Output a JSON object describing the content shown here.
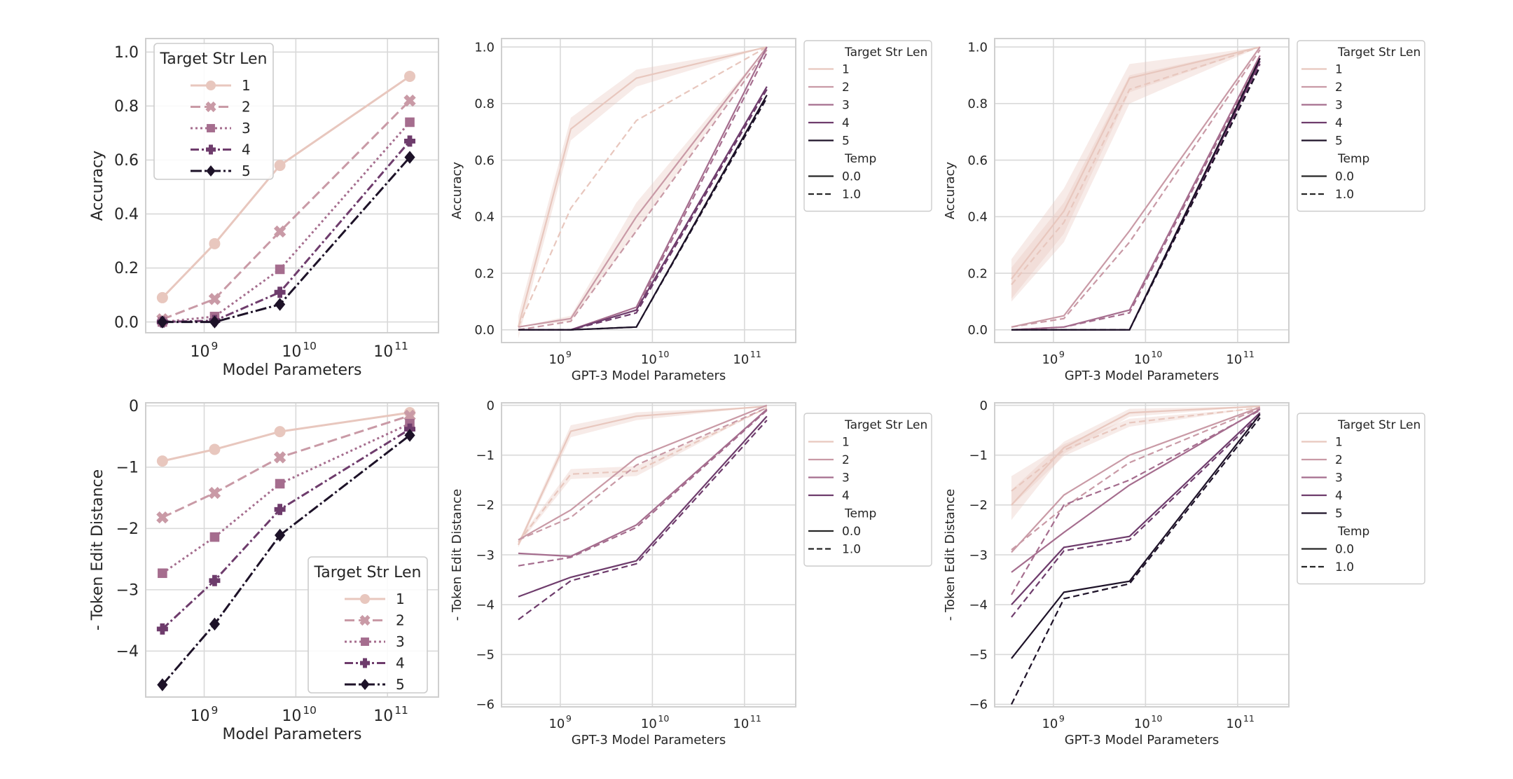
{
  "colors": {
    "len1": "#e8c7be",
    "len2": "#c99aa6",
    "len3": "#a56d8e",
    "len4": "#6e3c6c",
    "len5": "#1d1228",
    "grid": "#d9d9d9",
    "frame": "#cfcfcf",
    "band": "#e8c7be"
  },
  "legends": {
    "target_title": "Target Str Len",
    "temp_title": "Temp",
    "lengths": [
      "1",
      "2",
      "3",
      "4",
      "5"
    ],
    "temps": [
      "0.0",
      "1.0"
    ]
  },
  "chart_data": [
    {
      "type": "line",
      "panel": "top-left",
      "xlabel": "Model Parameters",
      "ylabel": "Accuracy",
      "xscale": "log",
      "xlim": [
        230000000.0,
        360000000000.0
      ],
      "ylim": [
        -0.04,
        1.05
      ],
      "yticks": [
        0.0,
        0.2,
        0.4,
        0.6,
        0.8,
        1.0
      ],
      "ytick_labels": [
        "0.0",
        "0.2",
        "0.4",
        "0.6",
        "0.8",
        "1.0"
      ],
      "xticks": [
        {
          "base": "10",
          "exp": "9",
          "value": 1000000000.0
        },
        {
          "base": "10",
          "exp": "10",
          "value": 10000000000.0
        },
        {
          "base": "10",
          "exp": "11",
          "value": 100000000000.0
        }
      ],
      "legend": "upper-left",
      "legend_title": "Target Str Len",
      "x": [
        350000000.0,
        1300000000.0,
        6700000000.0,
        175000000000.0
      ],
      "series": [
        {
          "name": "1",
          "values": [
            0.09,
            0.29,
            0.58,
            0.91
          ]
        },
        {
          "name": "2",
          "values": [
            0.01,
            0.085,
            0.335,
            0.82
          ]
        },
        {
          "name": "3",
          "values": [
            0.0,
            0.02,
            0.195,
            0.74
          ]
        },
        {
          "name": "4",
          "values": [
            0.0,
            0.005,
            0.11,
            0.67
          ]
        },
        {
          "name": "5",
          "values": [
            0.0,
            0.0,
            0.065,
            0.61
          ]
        }
      ]
    },
    {
      "type": "line",
      "panel": "top-middle",
      "xlabel": "GPT-3 Model Parameters",
      "ylabel": "Accuracy",
      "xscale": "log",
      "xlim": [
        230000000.0,
        360000000000.0
      ],
      "ylim": [
        -0.045,
        1.03
      ],
      "yticks": [
        0.0,
        0.2,
        0.4,
        0.6,
        0.8,
        1.0
      ],
      "ytick_labels": [
        "0.0",
        "0.2",
        "0.4",
        "0.6",
        "0.8",
        "1.0"
      ],
      "xticks": [
        {
          "base": "10",
          "exp": "9",
          "value": 1000000000.0
        },
        {
          "base": "10",
          "exp": "10",
          "value": 10000000000.0
        },
        {
          "base": "10",
          "exp": "11",
          "value": 100000000000.0
        }
      ],
      "legend": "outside-right",
      "legend_title": "Target Str Len",
      "legend_lengths": [
        "1",
        "2",
        "3",
        "4",
        "5"
      ],
      "x": [
        350000000.0,
        1300000000.0,
        6700000000.0,
        175000000000.0
      ],
      "series": [
        {
          "len": "1",
          "temp": "0.0",
          "values": [
            0.01,
            0.71,
            0.89,
            1.0
          ],
          "band": [
            0.04,
            0.04,
            0.03,
            0.0
          ]
        },
        {
          "len": "1",
          "temp": "1.0",
          "values": [
            0.01,
            0.43,
            0.74,
            1.0
          ]
        },
        {
          "len": "2",
          "temp": "0.0",
          "values": [
            0.01,
            0.04,
            0.4,
            1.0
          ],
          "band": [
            0.0,
            0.01,
            0.05,
            0.0
          ]
        },
        {
          "len": "2",
          "temp": "1.0",
          "values": [
            0.0,
            0.03,
            0.35,
            0.99
          ]
        },
        {
          "len": "3",
          "temp": "0.0",
          "values": [
            0.0,
            0.0,
            0.08,
            1.0
          ]
        },
        {
          "len": "3",
          "temp": "1.0",
          "values": [
            0.0,
            0.0,
            0.07,
            0.98
          ]
        },
        {
          "len": "4",
          "temp": "0.0",
          "values": [
            0.0,
            0.0,
            0.07,
            0.86
          ]
        },
        {
          "len": "4",
          "temp": "1.0",
          "values": [
            0.0,
            0.0,
            0.06,
            0.85
          ]
        },
        {
          "len": "5",
          "temp": "0.0",
          "values": [
            0.0,
            0.0,
            0.01,
            0.83
          ]
        },
        {
          "len": "5",
          "temp": "1.0",
          "values": [
            0.0,
            0.0,
            0.01,
            0.82
          ]
        }
      ]
    },
    {
      "type": "line",
      "panel": "top-right",
      "xlabel": "GPT-3 Model Parameters",
      "ylabel": "Accuracy",
      "xscale": "log",
      "xlim": [
        230000000.0,
        360000000000.0
      ],
      "ylim": [
        -0.045,
        1.03
      ],
      "yticks": [
        0.0,
        0.2,
        0.4,
        0.6,
        0.8,
        1.0
      ],
      "ytick_labels": [
        "0.0",
        "0.2",
        "0.4",
        "0.6",
        "0.8",
        "1.0"
      ],
      "xticks": [
        {
          "base": "10",
          "exp": "9",
          "value": 1000000000.0
        },
        {
          "base": "10",
          "exp": "10",
          "value": 10000000000.0
        },
        {
          "base": "10",
          "exp": "11",
          "value": 100000000000.0
        }
      ],
      "legend": "outside-right",
      "legend_title": "Target Str Len",
      "legend_lengths": [
        "1",
        "2",
        "3",
        "4",
        "5"
      ],
      "x": [
        350000000.0,
        1300000000.0,
        6700000000.0,
        175000000000.0
      ],
      "series": [
        {
          "len": "1",
          "temp": "0.0",
          "values": [
            0.18,
            0.42,
            0.89,
            1.0
          ],
          "band": [
            0.07,
            0.08,
            0.05,
            0.0
          ]
        },
        {
          "len": "1",
          "temp": "1.0",
          "values": [
            0.16,
            0.38,
            0.85,
            1.0
          ],
          "band": [
            0.06,
            0.07,
            0.05,
            0.0
          ]
        },
        {
          "len": "2",
          "temp": "0.0",
          "values": [
            0.01,
            0.05,
            0.35,
            1.0
          ]
        },
        {
          "len": "2",
          "temp": "1.0",
          "values": [
            0.01,
            0.04,
            0.31,
            0.99
          ]
        },
        {
          "len": "3",
          "temp": "0.0",
          "values": [
            0.0,
            0.01,
            0.07,
            0.97
          ]
        },
        {
          "len": "3",
          "temp": "1.0",
          "values": [
            0.0,
            0.01,
            0.06,
            0.96
          ]
        },
        {
          "len": "4",
          "temp": "0.0",
          "values": [
            0.0,
            0.0,
            0.0,
            0.95
          ]
        },
        {
          "len": "4",
          "temp": "1.0",
          "values": [
            0.0,
            0.0,
            0.0,
            0.94
          ]
        },
        {
          "len": "5",
          "temp": "0.0",
          "values": [
            0.0,
            0.0,
            0.0,
            0.96
          ]
        },
        {
          "len": "5",
          "temp": "1.0",
          "values": [
            0.0,
            0.0,
            0.0,
            0.93
          ]
        }
      ]
    },
    {
      "type": "line",
      "panel": "bottom-left",
      "xlabel": "Model Parameters",
      "ylabel": "- Token Edit Distance",
      "xscale": "log",
      "xlim": [
        230000000.0,
        360000000000.0
      ],
      "ylim": [
        -4.75,
        0.05
      ],
      "yticks": [
        0,
        -1,
        -2,
        -3,
        -4
      ],
      "ytick_labels": [
        "0",
        "−1",
        "−2",
        "−3",
        "−4"
      ],
      "xticks": [
        {
          "base": "10",
          "exp": "9",
          "value": 1000000000.0
        },
        {
          "base": "10",
          "exp": "10",
          "value": 10000000000.0
        },
        {
          "base": "10",
          "exp": "11",
          "value": 100000000000.0
        }
      ],
      "legend": "lower-right",
      "legend_title": "Target Str Len",
      "x": [
        350000000.0,
        1300000000.0,
        6700000000.0,
        175000000000.0
      ],
      "series": [
        {
          "name": "1",
          "values": [
            -0.9,
            -0.71,
            -0.42,
            -0.11
          ]
        },
        {
          "name": "2",
          "values": [
            -1.82,
            -1.42,
            -0.84,
            -0.16
          ]
        },
        {
          "name": "3",
          "values": [
            -2.73,
            -2.14,
            -1.27,
            -0.29
          ]
        },
        {
          "name": "4",
          "values": [
            -3.64,
            -2.85,
            -1.69,
            -0.38
          ]
        },
        {
          "name": "5",
          "values": [
            -4.55,
            -3.56,
            -2.11,
            -0.48
          ]
        }
      ]
    },
    {
      "type": "line",
      "panel": "bottom-middle",
      "xlabel": "GPT-3 Model Parameters",
      "ylabel": "- Token Edit Distance",
      "xscale": "log",
      "xlim": [
        230000000.0,
        360000000000.0
      ],
      "ylim": [
        -6.05,
        0.05
      ],
      "yticks": [
        0,
        -1,
        -2,
        -3,
        -4,
        -5,
        -6
      ],
      "ytick_labels": [
        "0",
        "−1",
        "−2",
        "−3",
        "−4",
        "−5",
        "−6"
      ],
      "xticks": [
        {
          "base": "10",
          "exp": "9",
          "value": 1000000000.0
        },
        {
          "base": "10",
          "exp": "10",
          "value": 10000000000.0
        },
        {
          "base": "10",
          "exp": "11",
          "value": 100000000000.0
        }
      ],
      "legend": "outside-right",
      "legend_title": "Target Str Len",
      "legend_lengths": [
        "1",
        "2",
        "3",
        "4"
      ],
      "x": [
        350000000.0,
        1300000000.0,
        6700000000.0,
        175000000000.0
      ],
      "series": [
        {
          "len": "1",
          "temp": "0.0",
          "values": [
            -2.8,
            -0.52,
            -0.22,
            -0.02
          ],
          "band": [
            0.05,
            0.12,
            0.08,
            0.0
          ]
        },
        {
          "len": "1",
          "temp": "1.0",
          "values": [
            -2.75,
            -1.38,
            -1.32,
            -0.05
          ],
          "band": [
            0.05,
            0.1,
            0.1,
            0.0
          ]
        },
        {
          "len": "2",
          "temp": "0.0",
          "values": [
            -2.7,
            -2.1,
            -1.05,
            0.0
          ]
        },
        {
          "len": "2",
          "temp": "1.0",
          "values": [
            -2.7,
            -2.25,
            -1.2,
            -0.05
          ]
        },
        {
          "len": "3",
          "temp": "0.0",
          "values": [
            -2.97,
            -3.03,
            -2.4,
            -0.08
          ]
        },
        {
          "len": "3",
          "temp": "1.0",
          "values": [
            -3.22,
            -3.05,
            -2.45,
            -0.1
          ]
        },
        {
          "len": "4",
          "temp": "0.0",
          "values": [
            -3.84,
            -3.45,
            -3.12,
            -0.22
          ]
        },
        {
          "len": "4",
          "temp": "1.0",
          "values": [
            -4.3,
            -3.52,
            -3.18,
            -0.3
          ]
        }
      ]
    },
    {
      "type": "line",
      "panel": "bottom-right",
      "xlabel": "GPT-3 Model Parameters",
      "ylabel": "- Token Edit Distance",
      "xscale": "log",
      "xlim": [
        230000000.0,
        360000000000.0
      ],
      "ylim": [
        -6.05,
        0.05
      ],
      "yticks": [
        0,
        -1,
        -2,
        -3,
        -4,
        -5,
        -6
      ],
      "ytick_labels": [
        "0",
        "−1",
        "−2",
        "−3",
        "−4",
        "−5",
        "−6"
      ],
      "xticks": [
        {
          "base": "10",
          "exp": "9",
          "value": 1000000000.0
        },
        {
          "base": "10",
          "exp": "10",
          "value": 10000000000.0
        },
        {
          "base": "10",
          "exp": "11",
          "value": 100000000000.0
        }
      ],
      "legend": "outside-right",
      "legend_title": "Target Str Len",
      "legend_lengths": [
        "1",
        "2",
        "3",
        "4",
        "5"
      ],
      "x": [
        350000000.0,
        1300000000.0,
        6700000000.0,
        175000000000.0
      ],
      "series": [
        {
          "len": "1",
          "temp": "0.0",
          "values": [
            -2.0,
            -0.85,
            -0.15,
            -0.02
          ],
          "band": [
            0.3,
            0.12,
            0.08,
            0.0
          ]
        },
        {
          "len": "1",
          "temp": "1.0",
          "values": [
            -1.72,
            -0.9,
            -0.35,
            -0.05
          ],
          "band": [
            0.3,
            0.12,
            0.08,
            0.0
          ]
        },
        {
          "len": "2",
          "temp": "0.0",
          "values": [
            -2.95,
            -1.8,
            -1.0,
            -0.04
          ]
        },
        {
          "len": "2",
          "temp": "1.0",
          "values": [
            -2.9,
            -2.05,
            -1.15,
            -0.06
          ]
        },
        {
          "len": "3",
          "temp": "0.0",
          "values": [
            -3.35,
            -2.55,
            -1.6,
            -0.08
          ]
        },
        {
          "len": "3",
          "temp": "1.0",
          "values": [
            -3.8,
            -2.0,
            -1.5,
            -0.1
          ]
        },
        {
          "len": "4",
          "temp": "0.0",
          "values": [
            -4.0,
            -2.85,
            -2.63,
            -0.15
          ]
        },
        {
          "len": "4",
          "temp": "1.0",
          "values": [
            -4.25,
            -2.92,
            -2.7,
            -0.2
          ]
        },
        {
          "len": "5",
          "temp": "0.0",
          "values": [
            -5.08,
            -3.75,
            -3.53,
            -0.18
          ]
        },
        {
          "len": "5",
          "temp": "1.0",
          "values": [
            -6.0,
            -3.88,
            -3.58,
            -0.25
          ]
        }
      ]
    }
  ]
}
